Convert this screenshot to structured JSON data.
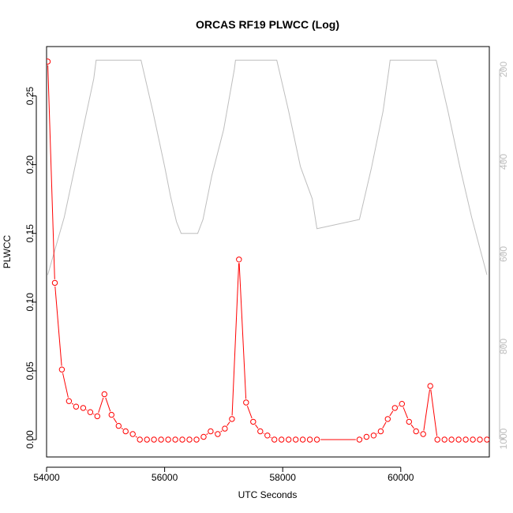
{
  "chart_data": {
    "type": "line",
    "title": "ORCAS RF19 PLWCC (Log)",
    "xlabel": "UTC Seconds",
    "ylabel": "PLWCC",
    "xlim": [
      54000,
      61500
    ],
    "ylim": [
      0,
      0.275
    ],
    "xticks": [
      "54000",
      "56000",
      "58000",
      "60000"
    ],
    "yticks": [
      "0.00",
      "0.05",
      "0.10",
      "0.15",
      "0.20",
      "0.25"
    ],
    "y2lim": [
      1000,
      180
    ],
    "y2ticks": [
      "200",
      "400",
      "600",
      "800",
      "1000"
    ],
    "series": [
      {
        "color": "#ff0000",
        "marker": "circle-open",
        "x": [
          54020,
          54140,
          54260,
          54380,
          54500,
          54620,
          54740,
          54860,
          54980,
          55100,
          55220,
          55340,
          55460,
          55580,
          55700,
          55820,
          55940,
          56060,
          56180,
          56300,
          56420,
          56540,
          56660,
          56780,
          56900,
          57020,
          57140,
          57260,
          57380,
          57500,
          57620,
          57740,
          57860,
          57980,
          58100,
          58220,
          58340,
          58460,
          58580,
          59300,
          59420,
          59540,
          59660,
          59780,
          59900,
          60020,
          60140,
          60260,
          60380,
          60500,
          60620,
          60740,
          60860,
          60980,
          61100,
          61220,
          61340,
          61460
        ],
        "values": [
          0.275,
          0.114,
          0.051,
          0.028,
          0.024,
          0.023,
          0.02,
          0.017,
          0.033,
          0.018,
          0.01,
          0.006,
          0.004,
          0.0,
          0.0,
          0.0,
          0.0,
          0.0,
          0.0,
          0.0,
          0.0,
          0.0,
          0.002,
          0.006,
          0.004,
          0.008,
          0.015,
          0.131,
          0.027,
          0.013,
          0.006,
          0.003,
          0.0,
          0.0,
          0.0,
          0.0,
          0.0,
          0.0,
          0.0,
          0.0,
          0.002,
          0.003,
          0.006,
          0.015,
          0.023,
          0.026,
          0.013,
          0.006,
          0.004,
          0.039,
          0.0,
          0.0,
          0.0,
          0.0,
          0.0,
          0.0,
          0.0,
          0.0
        ]
      },
      {
        "color": "#bebebe",
        "axis": "right",
        "x": [
          54020,
          54300,
          54550,
          54800,
          54840,
          55600,
          55800,
          56000,
          56100,
          56200,
          56280,
          56560,
          56650,
          56800,
          57000,
          57180,
          57200,
          57900,
          58100,
          58300,
          58500,
          58580,
          59300,
          59500,
          59700,
          59800,
          59820,
          60600,
          60800,
          61000,
          61200,
          61460
        ],
        "values": [
          645,
          520,
          370,
          220,
          180,
          180,
          290,
          410,
          475,
          530,
          555,
          555,
          525,
          430,
          330,
          200,
          180,
          180,
          290,
          410,
          480,
          545,
          525,
          415,
          290,
          200,
          180,
          180,
          290,
          410,
          520,
          645
        ]
      }
    ]
  }
}
